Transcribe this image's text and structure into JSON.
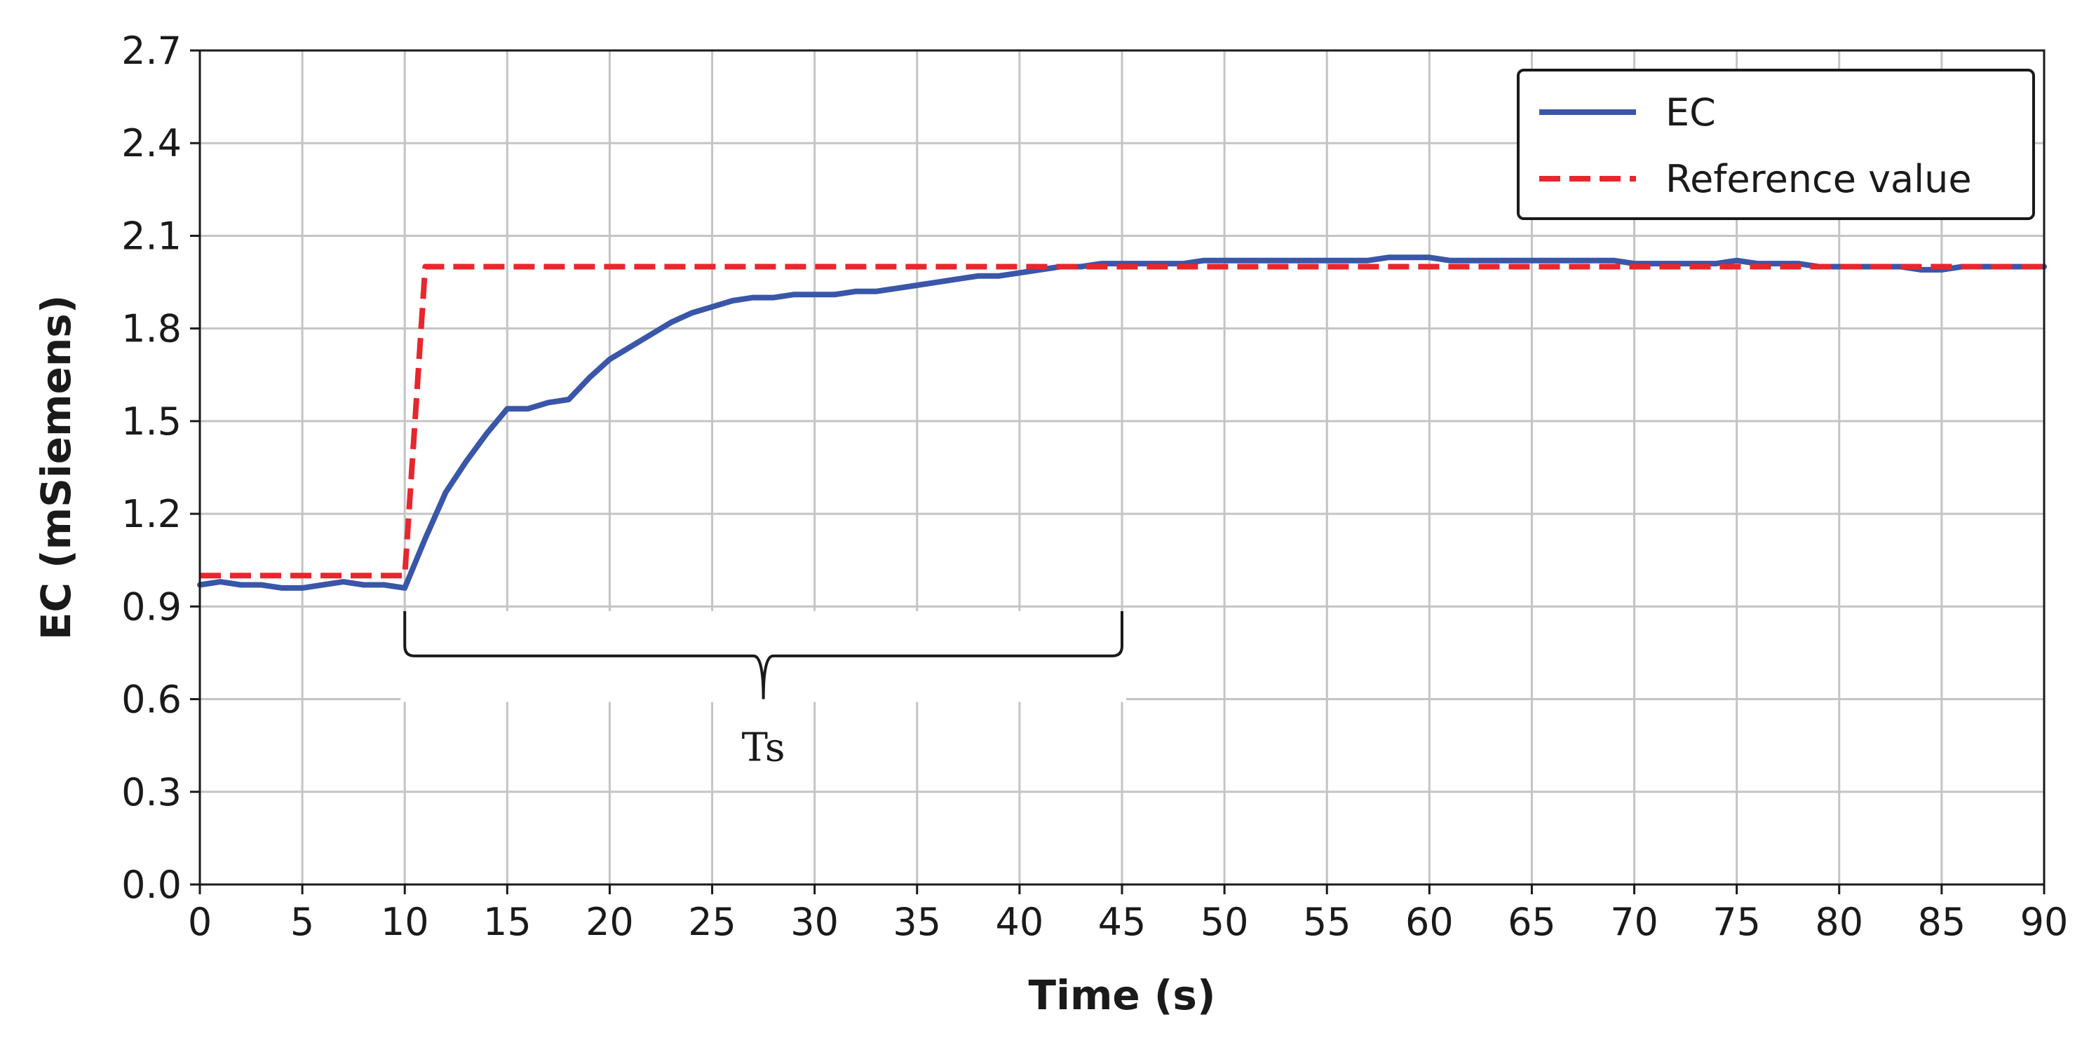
{
  "chart_data": {
    "type": "line",
    "xlabel": "Time (s)",
    "ylabel": "EC (mSiemens)",
    "xlim": [
      0,
      90
    ],
    "ylim": [
      0.0,
      2.7
    ],
    "xticks": [
      0,
      5,
      10,
      15,
      20,
      25,
      30,
      35,
      40,
      45,
      50,
      55,
      60,
      65,
      70,
      75,
      80,
      85,
      90
    ],
    "yticks": [
      0.0,
      0.3,
      0.6,
      0.9,
      1.2,
      1.5,
      1.8,
      2.1,
      2.4,
      2.7
    ],
    "ytick_labels": [
      "0.0",
      "0.3",
      "0.6",
      "0.9",
      "1.2",
      "1.5",
      "1.8",
      "2.1",
      "2.4",
      "2.7"
    ],
    "grid": true,
    "legend_position": "top-right",
    "series": [
      {
        "name": "EC",
        "color": "#3a56a8",
        "style": "solid",
        "x": [
          0,
          1,
          2,
          3,
          4,
          5,
          6,
          7,
          8,
          9,
          10,
          11,
          12,
          13,
          14,
          15,
          16,
          17,
          18,
          19,
          20,
          21,
          22,
          23,
          24,
          25,
          26,
          27,
          28,
          29,
          30,
          31,
          32,
          33,
          34,
          35,
          36,
          37,
          38,
          39,
          40,
          41,
          42,
          43,
          44,
          45,
          46,
          47,
          48,
          49,
          50,
          51,
          52,
          53,
          54,
          55,
          56,
          57,
          58,
          59,
          60,
          61,
          62,
          63,
          64,
          65,
          66,
          67,
          68,
          69,
          70,
          71,
          72,
          73,
          74,
          75,
          76,
          77,
          78,
          79,
          80,
          81,
          82,
          83,
          84,
          85,
          86,
          87,
          88,
          89,
          90
        ],
        "y": [
          0.97,
          0.98,
          0.97,
          0.97,
          0.96,
          0.96,
          0.97,
          0.98,
          0.97,
          0.97,
          0.96,
          1.12,
          1.27,
          1.37,
          1.46,
          1.54,
          1.54,
          1.56,
          1.57,
          1.64,
          1.7,
          1.74,
          1.78,
          1.82,
          1.85,
          1.87,
          1.89,
          1.9,
          1.9,
          1.91,
          1.91,
          1.91,
          1.92,
          1.92,
          1.93,
          1.94,
          1.95,
          1.96,
          1.97,
          1.97,
          1.98,
          1.99,
          2.0,
          2.0,
          2.01,
          2.01,
          2.01,
          2.01,
          2.01,
          2.02,
          2.02,
          2.02,
          2.02,
          2.02,
          2.02,
          2.02,
          2.02,
          2.02,
          2.03,
          2.03,
          2.03,
          2.02,
          2.02,
          2.02,
          2.02,
          2.02,
          2.02,
          2.02,
          2.02,
          2.02,
          2.01,
          2.01,
          2.01,
          2.01,
          2.01,
          2.02,
          2.01,
          2.01,
          2.01,
          2.0,
          2.0,
          2.0,
          2.0,
          2.0,
          1.99,
          1.99,
          2.0,
          2.0,
          2.0,
          2.0,
          2.0
        ]
      },
      {
        "name": "Reference value",
        "color": "#e8262c",
        "style": "dashed",
        "x": [
          0,
          10,
          11,
          90
        ],
        "y": [
          1.0,
          1.0,
          2.0,
          2.0
        ]
      }
    ],
    "annotations": [
      {
        "type": "brace",
        "x_start": 10,
        "x_end": 45,
        "label": "Ts"
      }
    ]
  }
}
